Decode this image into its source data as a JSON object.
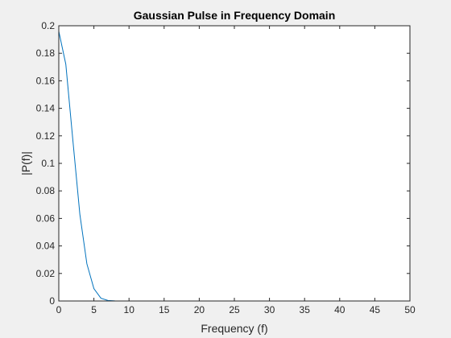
{
  "chart_data": {
    "type": "line",
    "title": "Gaussian Pulse in Frequency Domain",
    "xlabel": "Frequency (f)",
    "ylabel": "|P(f)|",
    "xlim": [
      0,
      50
    ],
    "ylim": [
      0,
      0.2
    ],
    "xticks": [
      0,
      5,
      10,
      15,
      20,
      25,
      30,
      35,
      40,
      45,
      50
    ],
    "yticks": [
      0,
      0.02,
      0.04,
      0.06,
      0.08,
      0.1,
      0.12,
      0.14,
      0.16,
      0.18,
      0.2
    ],
    "xtick_labels": [
      "0",
      "5",
      "10",
      "15",
      "20",
      "25",
      "30",
      "35",
      "40",
      "45",
      "50"
    ],
    "ytick_labels": [
      "0",
      "0.02",
      "0.04",
      "0.06",
      "0.08",
      "0.1",
      "0.12",
      "0.14",
      "0.16",
      "0.18",
      "0.2"
    ],
    "grid": false,
    "box": true,
    "colors": {
      "figure_background": "#f0f0f0",
      "axes_background": "#ffffff",
      "axis": "#262626",
      "line": "#0072bd"
    },
    "series": [
      {
        "x": [
          0,
          1,
          2,
          3,
          4,
          5,
          6,
          7,
          8,
          10,
          15,
          20,
          25,
          30,
          35,
          40,
          45,
          50
        ],
        "y": [
          0.196,
          0.172,
          0.117,
          0.063,
          0.027,
          0.009,
          0.002,
          0.0004,
          0.0001,
          0,
          0,
          0,
          0,
          0,
          0,
          0,
          0,
          0
        ]
      }
    ]
  }
}
